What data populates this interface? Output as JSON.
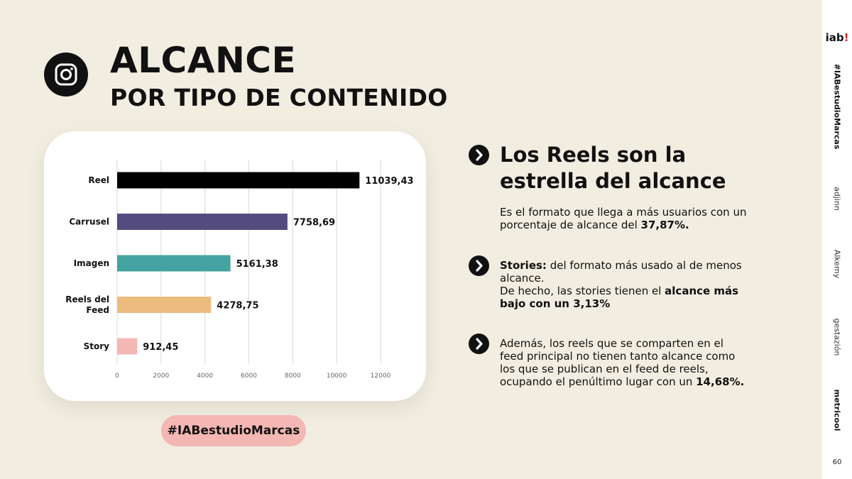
{
  "header": {
    "title": "ALCANCE",
    "subtitle": "POR TIPO DE CONTENIDO",
    "icon": "instagram-icon"
  },
  "chart_data": {
    "type": "bar",
    "orientation": "horizontal",
    "categories": [
      "Reel",
      "Carrusel",
      "Imagen",
      "Reels del Feed",
      "Story"
    ],
    "category_labels": [
      [
        "Reel"
      ],
      [
        "Carrusel"
      ],
      [
        "Imagen"
      ],
      [
        "Reels del",
        "Feed"
      ],
      [
        "Story"
      ]
    ],
    "values": [
      11039.43,
      7758.69,
      5161.38,
      4278.75,
      912.45
    ],
    "value_labels": [
      "11039,43",
      "7758,69",
      "5161,38",
      "4278,75",
      "912,45"
    ],
    "colors": [
      "#000000",
      "#544b7f",
      "#45a3a1",
      "#ecbc7e",
      "#f4b7b3"
    ],
    "xlim": [
      0,
      12000
    ],
    "xticks": [
      0,
      2000,
      4000,
      6000,
      8000,
      10000,
      12000
    ],
    "xtick_labels": [
      "0",
      "2000",
      "4000",
      "6000",
      "8000",
      "10000",
      "12000"
    ],
    "grid": true
  },
  "hashtag": "#IABestudioMarcas",
  "points": [
    {
      "icon": "chevron-right-icon",
      "headline": "Los Reels son la estrella del alcance",
      "text": "Es el formato que llega a más usuarios con un porcentaje de alcance del ",
      "bold": "37,87%."
    },
    {
      "icon": "chevron-right-icon",
      "lead_bold": "Stories:",
      "text1": " del formato más usado al de menos alcance.",
      "text2": "De hecho, las stories tienen el ",
      "bold": "alcance más bajo con un 3,13%"
    },
    {
      "icon": "chevron-right-icon",
      "text": "Además, los reels que se comparten en el feed principal no tienen tanto alcance como los que se publican en el feed de reels, ocupando el penúltimo lugar con un ",
      "bold": "14,68%."
    }
  ],
  "sidebar": {
    "logo": "iab",
    "logo_mark": "!",
    "hashtag": "#IABestudioMarcas",
    "partners": [
      "adjinn",
      "Alkemy",
      "gestazión",
      "metricool"
    ],
    "page": "60"
  }
}
